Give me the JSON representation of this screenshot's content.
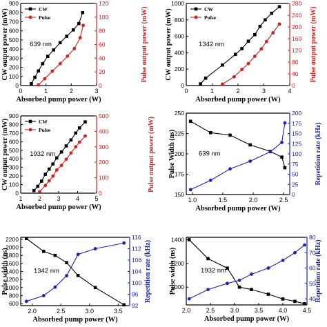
{
  "colors": {
    "cw": "#000000",
    "pulse": "#d21f1f",
    "rate": "#1a23b5",
    "axis": "#000000"
  },
  "chart_data": [
    {
      "type": "line",
      "annotation": "639 nm",
      "xlabel": "Absorbed pump power (W)",
      "ylabel_left": "CW output power (mW)",
      "ylabel_right": "Pulse output power (mW)",
      "xlim": [
        0,
        3
      ],
      "xticks": [
        0,
        1,
        2,
        3
      ],
      "ylim_left": [
        0,
        900
      ],
      "yticks_left": [
        0,
        100,
        200,
        300,
        400,
        500,
        600,
        700,
        800,
        900
      ],
      "ylim_right": [
        0,
        120
      ],
      "yticks_right": [
        0,
        20,
        40,
        60,
        80,
        100,
        120
      ],
      "legend": "top-left",
      "series": [
        {
          "name": "CW",
          "axis": "left",
          "marker": "square",
          "color": "cw",
          "x": [
            0.42,
            0.56,
            0.7,
            0.87,
            1.07,
            1.3,
            1.56,
            1.82,
            2.08,
            2.3,
            2.45
          ],
          "y": [
            20,
            90,
            160,
            240,
            320,
            390,
            470,
            540,
            610,
            680,
            800
          ]
        },
        {
          "name": "Pulse",
          "axis": "right",
          "marker": "circle",
          "color": "pulse",
          "x": [
            0.7,
            0.95,
            1.25,
            1.56,
            1.85,
            2.12,
            2.35,
            2.47
          ],
          "y": [
            1,
            10,
            21,
            32,
            43,
            54,
            70,
            88
          ]
        }
      ]
    },
    {
      "type": "line",
      "annotation": "1342 nm",
      "xlabel": "Absorbed pump power (W)",
      "ylabel_left": "CW output power (mW)",
      "ylabel_right": "Pulse output power (mW)",
      "xlim": [
        0,
        4
      ],
      "xticks": [
        0,
        1,
        2,
        3,
        4
      ],
      "ylim_left": [
        0,
        1000
      ],
      "yticks_left": [
        0,
        200,
        400,
        600,
        800,
        1000
      ],
      "ylim_right": [
        0,
        280
      ],
      "yticks_right": [
        0,
        40,
        80,
        120,
        160,
        200,
        240,
        280
      ],
      "legend": "top-left",
      "series": [
        {
          "name": "CW",
          "axis": "left",
          "marker": "square",
          "color": "cw",
          "x": [
            0.55,
            0.75,
            1.4,
            1.9,
            2.15,
            2.4,
            2.65,
            2.85,
            3.05,
            3.3,
            3.6
          ],
          "y": [
            20,
            90,
            250,
            380,
            450,
            540,
            620,
            720,
            800,
            880,
            960
          ]
        },
        {
          "name": "Pulse",
          "axis": "right",
          "marker": "circle",
          "color": "pulse",
          "x": [
            1.4,
            1.85,
            2.15,
            2.4,
            2.65,
            2.9,
            3.1,
            3.35,
            3.6
          ],
          "y": [
            5,
            30,
            55,
            75,
            100,
            125,
            150,
            180,
            210
          ]
        }
      ]
    },
    {
      "type": "line",
      "annotation": "1932 nm",
      "xlabel": "Absorbed pump power (W)",
      "ylabel_left": "CW output power (mW)",
      "ylabel_right": "Pulse output power (mW)",
      "xlim": [
        1,
        5
      ],
      "xticks": [
        1,
        2,
        3,
        4,
        5
      ],
      "ylim_left": [
        0,
        900
      ],
      "yticks_left": [
        0,
        100,
        200,
        300,
        400,
        500,
        600,
        700,
        800,
        900
      ],
      "ylim_right": [
        0,
        500
      ],
      "yticks_right": [
        0,
        100,
        200,
        300,
        400,
        500
      ],
      "legend": "top-left",
      "series": [
        {
          "name": "CW",
          "axis": "left",
          "marker": "square",
          "color": "cw",
          "x": [
            1.7,
            1.9,
            2.1,
            2.3,
            2.5,
            2.7,
            2.9,
            3.15,
            3.4,
            3.65,
            3.9,
            4.1,
            4.4
          ],
          "y": [
            30,
            80,
            140,
            220,
            280,
            340,
            410,
            480,
            550,
            620,
            700,
            760,
            830
          ]
        },
        {
          "name": "Pulse",
          "axis": "right",
          "marker": "circle",
          "color": "pulse",
          "x": [
            2.0,
            2.3,
            2.5,
            2.7,
            2.9,
            3.15,
            3.4,
            3.65,
            3.9,
            4.1,
            4.4
          ],
          "y": [
            10,
            50,
            80,
            110,
            150,
            180,
            220,
            260,
            300,
            330,
            370
          ]
        }
      ]
    },
    {
      "type": "line",
      "annotation": "639 nm",
      "xlabel": "Absorbed pump power (W)",
      "ylabel_left": "Pulse Width (ns)",
      "ylabel_right": "Repetition rate (kHz)",
      "xlim": [
        0.9,
        2.6
      ],
      "xticks": [
        1.0,
        1.5,
        2.0,
        2.5
      ],
      "ylim_left": [
        150,
        250
      ],
      "yticks_left": [
        150,
        175,
        200,
        225,
        250
      ],
      "ylim_right": [
        0,
        200
      ],
      "yticks_right": [
        0,
        25,
        50,
        75,
        100,
        125,
        150,
        175,
        200
      ],
      "series": [
        {
          "name": "",
          "axis": "left",
          "marker": "square",
          "color": "cw",
          "x": [
            0.97,
            1.3,
            1.62,
            1.95,
            2.28,
            2.47,
            2.52
          ],
          "y": [
            240,
            226,
            223,
            211,
            203,
            196,
            183
          ]
        },
        {
          "name": "",
          "axis": "right",
          "marker": "circle",
          "color": "rate",
          "x": [
            0.97,
            1.3,
            1.62,
            1.95,
            2.28,
            2.47,
            2.52
          ],
          "y": [
            12,
            35,
            63,
            82,
            105,
            128,
            176
          ]
        }
      ]
    },
    {
      "type": "line",
      "annotation": "1342 nm",
      "xlabel": "Absorbed pump power (W)",
      "ylabel_left": "Pulse width (ns)",
      "ylabel_right": "Repetition rate (kHz)",
      "xlim": [
        1.8,
        3.7
      ],
      "xticks": [
        2.0,
        2.5,
        3.0,
        3.5
      ],
      "ylim_left": [
        550,
        2250
      ],
      "yticks_left": [
        600,
        800,
        1000,
        1200,
        1400,
        1600,
        1800,
        2000,
        2200
      ],
      "ylim_right": [
        92,
        116
      ],
      "yticks_right": [
        92,
        96,
        100,
        104,
        108,
        112,
        116
      ],
      "series": [
        {
          "name": "",
          "axis": "left",
          "marker": "square",
          "color": "cw",
          "x": [
            1.9,
            2.2,
            2.4,
            2.6,
            2.8,
            3.1,
            3.6
          ],
          "y": [
            2220,
            1900,
            1800,
            1620,
            1300,
            1000,
            570
          ]
        },
        {
          "name": "",
          "axis": "right",
          "marker": "circle",
          "color": "rate",
          "x": [
            1.9,
            2.2,
            2.4,
            2.6,
            2.8,
            3.1,
            3.6
          ],
          "y": [
            93.5,
            95.5,
            98.5,
            102.5,
            110.0,
            112.0,
            114.0
          ]
        }
      ]
    },
    {
      "type": "line",
      "annotation": "1932 nm",
      "xlabel": "Absorbed pump power (W)",
      "ylabel_left": "Pulse width (ns)",
      "ylabel_right": "Repetition rate (kHz)",
      "xlim": [
        2.0,
        4.5
      ],
      "xticks": [
        2.0,
        2.5,
        3.0,
        3.5,
        4.0,
        4.5
      ],
      "ylim_left": [
        850,
        1420
      ],
      "yticks_left": [
        1000,
        1200,
        1400
      ],
      "ylim_right": [
        36,
        80
      ],
      "yticks_right": [
        40,
        50,
        60,
        70,
        80
      ],
      "series": [
        {
          "name": "",
          "axis": "left",
          "marker": "square",
          "color": "cw",
          "x": [
            2.06,
            2.45,
            2.85,
            3.1,
            3.35,
            3.7,
            4.0,
            4.25,
            4.45
          ],
          "y": [
            1400,
            1240,
            1160,
            1000,
            980,
            940,
            900,
            880,
            860
          ]
        },
        {
          "name": "",
          "axis": "right",
          "marker": "circle",
          "color": "rate",
          "x": [
            2.06,
            2.45,
            2.85,
            3.1,
            3.35,
            3.7,
            4.0,
            4.25,
            4.45
          ],
          "y": [
            40,
            46,
            50,
            52,
            56,
            60,
            65,
            70,
            75
          ]
        }
      ]
    }
  ]
}
